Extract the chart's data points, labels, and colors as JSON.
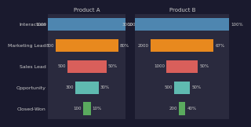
{
  "title_a": "Product A",
  "title_b": "Product B",
  "categories": [
    "Interaction",
    "Marketing Lead",
    "Sales Lead",
    "Opportunity",
    "Closed-Won"
  ],
  "product_a_values": [
    1000,
    800,
    500,
    300,
    100
  ],
  "product_a_pcts": [
    "100%",
    "80%",
    "50%",
    "30%",
    "10%"
  ],
  "product_b_values": [
    3000,
    2000,
    1000,
    500,
    200
  ],
  "product_b_pcts": [
    "100%",
    "67%",
    "50%",
    "50%",
    "40%"
  ],
  "bar_colors": [
    "#4e86b0",
    "#e8891e",
    "#d95f5b",
    "#5fbab0",
    "#5aaa5e"
  ],
  "background_color": "#1a1a2e",
  "panel_color": "#2a2a3e",
  "text_color": "#cccccc",
  "label_fontsize": 4.5,
  "title_fontsize": 5.0,
  "value_fontsize": 4.0,
  "bar_height": 0.6
}
